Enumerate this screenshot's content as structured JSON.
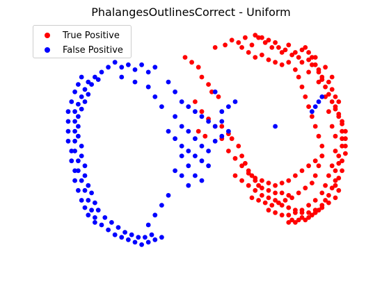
{
  "chart_data": {
    "type": "scatter",
    "title": "PhalangesOutlinesCorrect - Uniform",
    "xlabel": "",
    "ylabel": "",
    "axes_visible": false,
    "grid": false,
    "legend_placement": "top-left",
    "xlim": [
      0,
      100
    ],
    "ylim": [
      0,
      100
    ],
    "series": [
      {
        "name": "True Positive",
        "color": "#ff0000",
        "points": [
          [
            54,
            92
          ],
          [
            57,
            93
          ],
          [
            59,
            95
          ],
          [
            61,
            94
          ],
          [
            63,
            96
          ],
          [
            65,
            93
          ],
          [
            66,
            97
          ],
          [
            68,
            96
          ],
          [
            70,
            95
          ],
          [
            72,
            94
          ],
          [
            73,
            92
          ],
          [
            75,
            91
          ],
          [
            76,
            93
          ],
          [
            78,
            90
          ],
          [
            79,
            88
          ],
          [
            80,
            91
          ],
          [
            82,
            87
          ],
          [
            83,
            85
          ],
          [
            84,
            88
          ],
          [
            85,
            83
          ],
          [
            86,
            80
          ],
          [
            87,
            84
          ],
          [
            88,
            78
          ],
          [
            89,
            75
          ],
          [
            89,
            80
          ],
          [
            90,
            72
          ],
          [
            90,
            68
          ],
          [
            91,
            65
          ],
          [
            91,
            70
          ],
          [
            92,
            62
          ],
          [
            92,
            58
          ],
          [
            92,
            55
          ],
          [
            92,
            52
          ],
          [
            91,
            48
          ],
          [
            91,
            45
          ],
          [
            90,
            42
          ],
          [
            90,
            38
          ],
          [
            89,
            35
          ],
          [
            88,
            32
          ],
          [
            87,
            30
          ],
          [
            86,
            28
          ],
          [
            85,
            26
          ],
          [
            84,
            25
          ],
          [
            83,
            24
          ],
          [
            82,
            23
          ],
          [
            81,
            22
          ],
          [
            80,
            23
          ],
          [
            79,
            22
          ],
          [
            78,
            21
          ],
          [
            77,
            22
          ],
          [
            76,
            21
          ],
          [
            67,
            96
          ],
          [
            69,
            94
          ],
          [
            71,
            92
          ],
          [
            74,
            90
          ],
          [
            77,
            89
          ],
          [
            80,
            86
          ],
          [
            82,
            82
          ],
          [
            85,
            78
          ],
          [
            87,
            72
          ],
          [
            88,
            66
          ],
          [
            89,
            60
          ],
          [
            90,
            56
          ],
          [
            90,
            50
          ],
          [
            89,
            44
          ],
          [
            88,
            40
          ],
          [
            87,
            36
          ],
          [
            86,
            33
          ],
          [
            84,
            30
          ],
          [
            82,
            28
          ],
          [
            80,
            26
          ],
          [
            78,
            25
          ],
          [
            76,
            24
          ],
          [
            74,
            24
          ],
          [
            72,
            25
          ],
          [
            70,
            26
          ],
          [
            62,
            92
          ],
          [
            64,
            90
          ],
          [
            66,
            88
          ],
          [
            68,
            89
          ],
          [
            70,
            87
          ],
          [
            72,
            86
          ],
          [
            74,
            85
          ],
          [
            76,
            86
          ],
          [
            78,
            83
          ],
          [
            79,
            80
          ],
          [
            80,
            76
          ],
          [
            81,
            72
          ],
          [
            82,
            68
          ],
          [
            83,
            64
          ],
          [
            84,
            60
          ],
          [
            85,
            56
          ],
          [
            86,
            52
          ],
          [
            86,
            48
          ],
          [
            85,
            44
          ],
          [
            84,
            40
          ],
          [
            83,
            37
          ],
          [
            81,
            35
          ],
          [
            79,
            33
          ],
          [
            77,
            31
          ],
          [
            75,
            30
          ],
          [
            73,
            29
          ],
          [
            71,
            28
          ],
          [
            69,
            29
          ],
          [
            67,
            30
          ],
          [
            65,
            31
          ],
          [
            45,
            88
          ],
          [
            47,
            86
          ],
          [
            49,
            84
          ],
          [
            50,
            80
          ],
          [
            52,
            77
          ],
          [
            53,
            74
          ],
          [
            55,
            72
          ],
          [
            56,
            60
          ],
          [
            58,
            57
          ],
          [
            59,
            55
          ],
          [
            61,
            52
          ],
          [
            62,
            48
          ],
          [
            63,
            45
          ],
          [
            64,
            42
          ],
          [
            65,
            40
          ],
          [
            66,
            38
          ],
          [
            67,
            36
          ],
          [
            68,
            35
          ],
          [
            70,
            34
          ],
          [
            72,
            33
          ],
          [
            74,
            33
          ],
          [
            76,
            32
          ],
          [
            48,
            70
          ],
          [
            50,
            66
          ],
          [
            52,
            63
          ],
          [
            49,
            58
          ],
          [
            51,
            56
          ],
          [
            54,
            60
          ],
          [
            56,
            55
          ],
          [
            58,
            50
          ],
          [
            60,
            47
          ],
          [
            62,
            44
          ],
          [
            64,
            41
          ],
          [
            66,
            39
          ],
          [
            68,
            38
          ],
          [
            70,
            37
          ],
          [
            72,
            36
          ],
          [
            74,
            37
          ],
          [
            76,
            38
          ],
          [
            78,
            40
          ],
          [
            80,
            42
          ],
          [
            82,
            44
          ],
          [
            84,
            46
          ],
          [
            86,
            48
          ],
          [
            60,
            40
          ],
          [
            62,
            38
          ],
          [
            64,
            36
          ],
          [
            66,
            34
          ],
          [
            68,
            32
          ],
          [
            70,
            31
          ],
          [
            72,
            30
          ],
          [
            74,
            28
          ],
          [
            76,
            27
          ],
          [
            78,
            26
          ],
          [
            80,
            25
          ],
          [
            82,
            25
          ],
          [
            84,
            26
          ],
          [
            86,
            27
          ],
          [
            88,
            29
          ],
          [
            90,
            31
          ],
          [
            91,
            34
          ],
          [
            93,
            55
          ],
          [
            93,
            52
          ],
          [
            93,
            49
          ],
          [
            92,
            46
          ],
          [
            92,
            42
          ],
          [
            91,
            39
          ],
          [
            90,
            36
          ],
          [
            93,
            58
          ],
          [
            92,
            61
          ],
          [
            91,
            64
          ],
          [
            90,
            67
          ],
          [
            89,
            70
          ],
          [
            88,
            73
          ],
          [
            87,
            76
          ],
          [
            86,
            79
          ],
          [
            85,
            82
          ],
          [
            84,
            85
          ],
          [
            83,
            88
          ],
          [
            82,
            90
          ],
          [
            81,
            92
          ]
        ]
      },
      {
        "name": "False Positive",
        "color": "#0000ff",
        "points": [
          [
            22,
            84
          ],
          [
            24,
            86
          ],
          [
            26,
            84
          ],
          [
            28,
            85
          ],
          [
            30,
            83
          ],
          [
            32,
            85
          ],
          [
            34,
            82
          ],
          [
            36,
            84
          ],
          [
            20,
            82
          ],
          [
            18,
            80
          ],
          [
            16,
            78
          ],
          [
            15,
            75
          ],
          [
            14,
            72
          ],
          [
            13,
            69
          ],
          [
            12,
            66
          ],
          [
            12,
            62
          ],
          [
            12,
            58
          ],
          [
            12,
            54
          ],
          [
            12,
            50
          ],
          [
            13,
            46
          ],
          [
            13,
            42
          ],
          [
            14,
            38
          ],
          [
            15,
            34
          ],
          [
            16,
            30
          ],
          [
            17,
            26
          ],
          [
            18,
            23
          ],
          [
            20,
            20
          ],
          [
            22,
            18
          ],
          [
            24,
            16
          ],
          [
            26,
            15
          ],
          [
            28,
            14
          ],
          [
            30,
            13
          ],
          [
            32,
            12
          ],
          [
            34,
            13
          ],
          [
            36,
            14
          ],
          [
            38,
            15
          ],
          [
            19,
            79
          ],
          [
            17,
            77
          ],
          [
            16,
            73
          ],
          [
            15,
            70
          ],
          [
            14,
            67
          ],
          [
            13,
            64
          ],
          [
            13,
            60
          ],
          [
            13,
            56
          ],
          [
            14,
            52
          ],
          [
            14,
            48
          ],
          [
            15,
            44
          ],
          [
            15,
            40
          ],
          [
            16,
            36
          ],
          [
            17,
            33
          ],
          [
            18,
            29
          ],
          [
            19,
            26
          ],
          [
            21,
            23
          ],
          [
            23,
            21
          ],
          [
            25,
            19
          ],
          [
            27,
            17
          ],
          [
            29,
            16
          ],
          [
            31,
            15
          ],
          [
            33,
            15
          ],
          [
            35,
            16
          ],
          [
            14,
            80
          ],
          [
            13,
            77
          ],
          [
            12,
            74
          ],
          [
            11,
            70
          ],
          [
            10,
            66
          ],
          [
            10,
            62
          ],
          [
            10,
            58
          ],
          [
            10,
            54
          ],
          [
            11,
            50
          ],
          [
            11,
            46
          ],
          [
            12,
            42
          ],
          [
            12,
            38
          ],
          [
            13,
            34
          ],
          [
            14,
            30
          ],
          [
            15,
            27
          ],
          [
            16,
            24
          ],
          [
            18,
            21
          ],
          [
            40,
            78
          ],
          [
            42,
            74
          ],
          [
            44,
            70
          ],
          [
            46,
            68
          ],
          [
            48,
            66
          ],
          [
            50,
            64
          ],
          [
            52,
            62
          ],
          [
            54,
            60
          ],
          [
            42,
            64
          ],
          [
            44,
            60
          ],
          [
            46,
            58
          ],
          [
            48,
            55
          ],
          [
            50,
            52
          ],
          [
            52,
            50
          ],
          [
            54,
            54
          ],
          [
            56,
            56
          ],
          [
            58,
            58
          ],
          [
            44,
            52
          ],
          [
            46,
            50
          ],
          [
            48,
            48
          ],
          [
            50,
            46
          ],
          [
            52,
            44
          ],
          [
            40,
            58
          ],
          [
            42,
            55
          ],
          [
            44,
            48
          ],
          [
            46,
            44
          ],
          [
            48,
            40
          ],
          [
            50,
            38
          ],
          [
            42,
            42
          ],
          [
            44,
            40
          ],
          [
            46,
            36
          ],
          [
            40,
            32
          ],
          [
            38,
            28
          ],
          [
            36,
            24
          ],
          [
            34,
            20
          ],
          [
            56,
            66
          ],
          [
            58,
            68
          ],
          [
            60,
            70
          ],
          [
            38,
            68
          ],
          [
            36,
            72
          ],
          [
            34,
            76
          ],
          [
            30,
            78
          ],
          [
            26,
            80
          ],
          [
            83,
            66
          ],
          [
            84,
            68
          ],
          [
            85,
            70
          ],
          [
            86,
            72
          ],
          [
            72,
            60
          ],
          [
            54,
            74
          ],
          [
            56,
            62
          ]
        ]
      }
    ]
  },
  "legend": [
    {
      "label": "True Positive",
      "color": "#ff0000"
    },
    {
      "label": "False Positive",
      "color": "#0000ff"
    }
  ]
}
